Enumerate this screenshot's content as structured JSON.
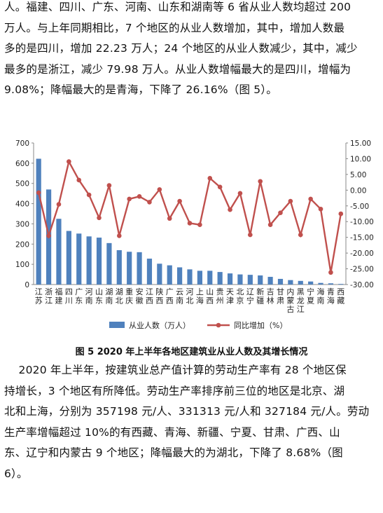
{
  "paragraph1": {
    "lines": [
      "人。福建、四川、广东、河南、山东和湖南等 6 省从业人数均超过 200",
      "万人。与上年同期相比，7 个地区的从业人数增加，其中，增加人数最",
      "多的是四川，增加 22.23 万人；24 个地区的从业人数减少，其中，减少",
      "最多的是浙江，减少 79.98 万人。从业人数增幅最大的是四川，增幅为",
      "9.08%；降幅最大的是青海，下降了 26.16%（图 5）。"
    ]
  },
  "chart_data": {
    "type": "bar",
    "categories": [
      "江苏",
      "浙江",
      "福建",
      "四川",
      "广东",
      "河南",
      "山东",
      "湖南",
      "湖北",
      "重庆",
      "安徽",
      "江西",
      "陕西",
      "广西",
      "云南",
      "河北",
      "上海",
      "山西",
      "贵州",
      "天津",
      "北京",
      "辽宁",
      "新疆",
      "吉林",
      "甘肃",
      "内蒙古",
      "黑龙江",
      "宁夏",
      "海南",
      "青海",
      "西藏"
    ],
    "category_lines": [
      [
        "江",
        "苏"
      ],
      [
        "浙",
        "江"
      ],
      [
        "福",
        "建"
      ],
      [
        "四",
        "川"
      ],
      [
        "广",
        "东"
      ],
      [
        "河",
        "南"
      ],
      [
        "山",
        "东"
      ],
      [
        "湖",
        "南"
      ],
      [
        "湖",
        "北"
      ],
      [
        "重",
        "庆"
      ],
      [
        "安",
        "徽"
      ],
      [
        "江",
        "西"
      ],
      [
        "陕",
        "西"
      ],
      [
        "广",
        "西"
      ],
      [
        "云",
        "南"
      ],
      [
        "河",
        "北"
      ],
      [
        "上",
        "海"
      ],
      [
        "山",
        "西"
      ],
      [
        "贵",
        "州"
      ],
      [
        "天",
        "津"
      ],
      [
        "北",
        "京"
      ],
      [
        "辽",
        "宁"
      ],
      [
        "新",
        "疆"
      ],
      [
        "吉",
        "林"
      ],
      [
        "甘",
        "肃"
      ],
      [
        "内",
        "蒙",
        "古"
      ],
      [
        "黑",
        "龙",
        "江"
      ],
      [
        "宁",
        "夏"
      ],
      [
        "海",
        "南"
      ],
      [
        "青",
        "海"
      ],
      [
        "西",
        "藏"
      ]
    ],
    "series": [
      {
        "name": "从业人数（万人）",
        "type": "bar",
        "axis": "left",
        "color": "#4f81bd",
        "values": [
          622,
          470,
          325,
          265,
          252,
          238,
          232,
          205,
          170,
          162,
          160,
          128,
          103,
          95,
          85,
          75,
          68,
          68,
          62,
          55,
          50,
          48,
          45,
          38,
          28,
          22,
          18,
          15,
          8,
          6,
          3
        ]
      },
      {
        "name": "同比增加（%）",
        "type": "line",
        "axis": "right",
        "color": "#c0504d",
        "values": [
          -0.8,
          -14.5,
          -4.5,
          9.08,
          3.2,
          -1.5,
          -8.8,
          1.5,
          -14.5,
          -2.8,
          -2.0,
          -3.8,
          0.2,
          -9.0,
          -3.5,
          -10.5,
          -11.0,
          3.8,
          1.0,
          -6.2,
          -1.0,
          -14.2,
          2.8,
          -11.0,
          -7.2,
          -3.5,
          -14.2,
          -2.8,
          -6.0,
          -26.16,
          -7.5
        ]
      }
    ],
    "y_left": {
      "min": 0,
      "max": 700,
      "ticks": [
        "0",
        "100",
        "200",
        "300",
        "400",
        "500",
        "600",
        "700"
      ]
    },
    "y_right": {
      "min": -30,
      "max": 15,
      "ticks": [
        "-30.00",
        "-25.00",
        "-20.00",
        "-15.00",
        "-10.00",
        "-5.00",
        "0.00",
        "5.00",
        "10.00",
        "15.00"
      ]
    },
    "legend": {
      "placement": "bottom",
      "bar_label": "从业人数（万人）",
      "line_label": "同比增加（%）"
    },
    "grid": false
  },
  "caption": "图 5   2020 年上半年各地区建筑业从业人数及其增长情况",
  "paragraph2": {
    "lines": [
      "    2020 年上半年，按建筑业总产值计算的劳动生产率有 28 个地区保",
      "持增长，3 个地区有所降低。劳动生产率排序前三位的地区是北京、湖",
      "北和上海，分别为 357198 元/人、331313 元/人和 327184 元/人。劳动",
      "生产率增幅超过 10%的有西藏、青海、新疆、宁夏、甘肃、广西、山",
      "东、辽宁和内蒙古 9 个地区；降幅最大的为湖北，下降了 8.68%（图",
      "6）。"
    ]
  }
}
